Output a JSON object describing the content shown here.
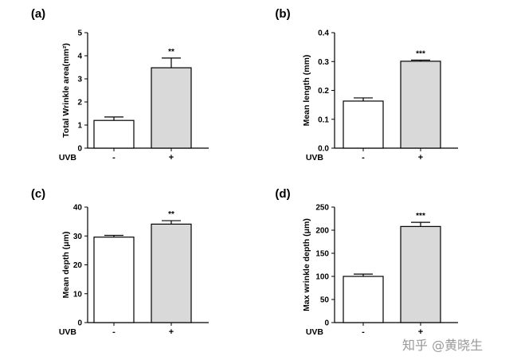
{
  "figure": {
    "watermark": "知乎 @黄晓生"
  },
  "chart_data": [
    {
      "type": "bar",
      "panel_label": "(a)",
      "categories": [
        "-",
        "+"
      ],
      "values": [
        1.2,
        3.48
      ],
      "errors": [
        0.15,
        0.42
      ],
      "significance": [
        "",
        "**"
      ],
      "group_label": "UVB",
      "ylabel": "Total Wrinkle area(mm²)",
      "ylim": [
        0,
        5
      ],
      "yticks": [
        0,
        1,
        2,
        3,
        4,
        5
      ],
      "ytick_labels": [
        "0",
        "1",
        "2",
        "3",
        "4",
        "5"
      ],
      "colors": [
        "#ffffff",
        "#d9d9d9"
      ],
      "grid": false
    },
    {
      "type": "bar",
      "panel_label": "(b)",
      "categories": [
        "-",
        "+"
      ],
      "values": [
        0.163,
        0.301
      ],
      "errors": [
        0.011,
        0.004
      ],
      "significance": [
        "",
        "***"
      ],
      "group_label": "UVB",
      "ylabel": "Mean length (mm)",
      "ylim": [
        0,
        0.4
      ],
      "yticks": [
        0,
        0.1,
        0.2,
        0.3,
        0.4
      ],
      "ytick_labels": [
        "0.0",
        "0.1",
        "0.2",
        "0.3",
        "0.4"
      ],
      "colors": [
        "#ffffff",
        "#d9d9d9"
      ],
      "grid": false
    },
    {
      "type": "bar",
      "panel_label": "(c)",
      "categories": [
        "-",
        "+"
      ],
      "values": [
        29.6,
        34.1
      ],
      "errors": [
        0.6,
        1.2
      ],
      "significance": [
        "",
        "**"
      ],
      "group_label": "UVB",
      "ylabel": "Mean depth (μm)",
      "ylim": [
        0,
        40
      ],
      "yticks": [
        0,
        10,
        20,
        30,
        40
      ],
      "ytick_labels": [
        "0",
        "10",
        "20",
        "30",
        "40"
      ],
      "colors": [
        "#ffffff",
        "#d9d9d9"
      ],
      "grid": false
    },
    {
      "type": "bar",
      "panel_label": "(d)",
      "categories": [
        "-",
        "+"
      ],
      "values": [
        100,
        208
      ],
      "errors": [
        5,
        9
      ],
      "significance": [
        "",
        "***"
      ],
      "group_label": "UVB",
      "ylabel": "Max wrinkle depth (μm)",
      "ylim": [
        0,
        250
      ],
      "yticks": [
        0,
        50,
        100,
        150,
        200,
        250
      ],
      "ytick_labels": [
        "0",
        "50",
        "100",
        "150",
        "200",
        "250"
      ],
      "colors": [
        "#ffffff",
        "#d9d9d9"
      ],
      "grid": false
    }
  ]
}
